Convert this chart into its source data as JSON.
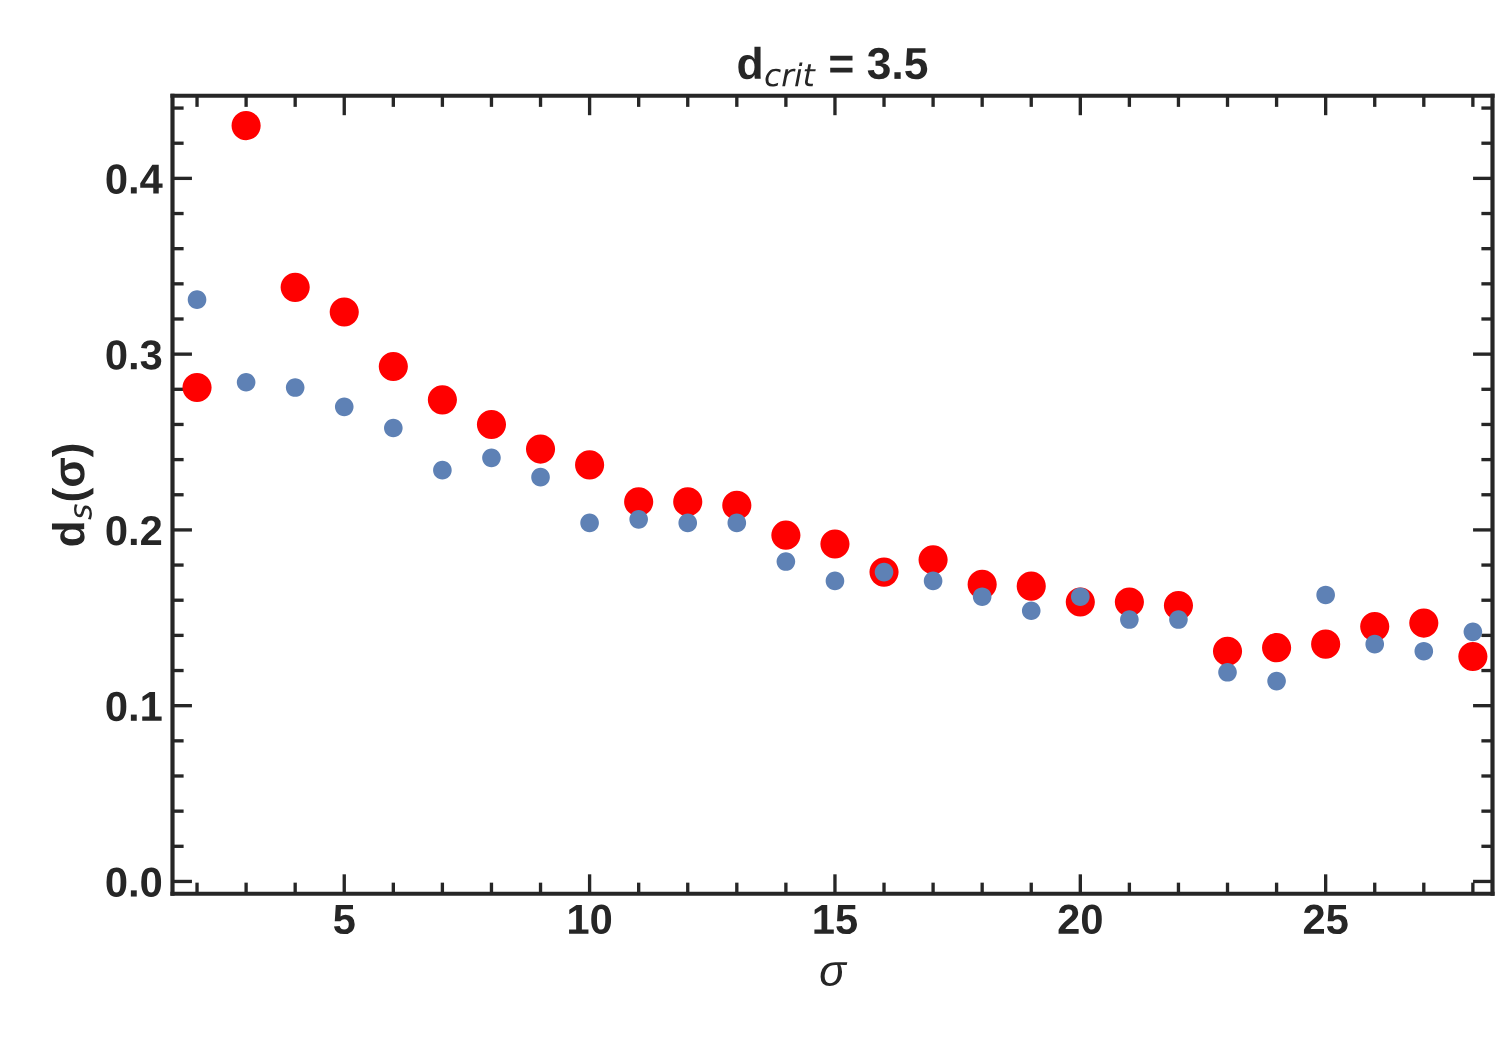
{
  "chart_data": {
    "type": "scatter",
    "title": "d$_{crit}$ = 3.5",
    "xlabel": "σ",
    "ylabel": "d$_{s}$(σ)",
    "x": [
      2,
      3,
      4,
      5,
      6,
      7,
      8,
      9,
      10,
      11,
      12,
      13,
      14,
      15,
      16,
      17,
      18,
      19,
      20,
      21,
      22,
      23,
      24,
      25,
      26,
      27,
      28
    ],
    "series": [
      {
        "color": "#ff0000",
        "values": [
          0.281,
          0.43,
          0.338,
          0.324,
          0.293,
          0.274,
          0.26,
          0.246,
          0.237,
          0.216,
          0.216,
          0.214,
          0.197,
          0.192,
          0.176,
          0.183,
          0.169,
          0.168,
          0.159,
          0.159,
          0.157,
          0.131,
          0.133,
          0.135,
          0.145,
          0.147,
          0.128
        ]
      },
      {
        "color": "#5e81b5",
        "values": [
          0.331,
          0.284,
          0.281,
          0.27,
          0.258,
          0.234,
          0.241,
          0.23,
          0.204,
          0.206,
          0.204,
          0.204,
          0.182,
          0.171,
          0.176,
          0.171,
          0.162,
          0.154,
          0.162,
          0.149,
          0.149,
          0.119,
          0.114,
          0.163,
          0.135,
          0.131,
          0.142
        ]
      }
    ],
    "xlim": [
      1.5,
      28.4
    ],
    "ylim": [
      -0.007,
      0.447
    ],
    "xticks": [
      5,
      10,
      15,
      20,
      25
    ],
    "yticks": [
      {
        "value": 0,
        "label": "0.0"
      },
      0.1,
      0.2,
      0.3,
      0.4
    ],
    "marker": "circle",
    "grid": false,
    "legend": false
  }
}
